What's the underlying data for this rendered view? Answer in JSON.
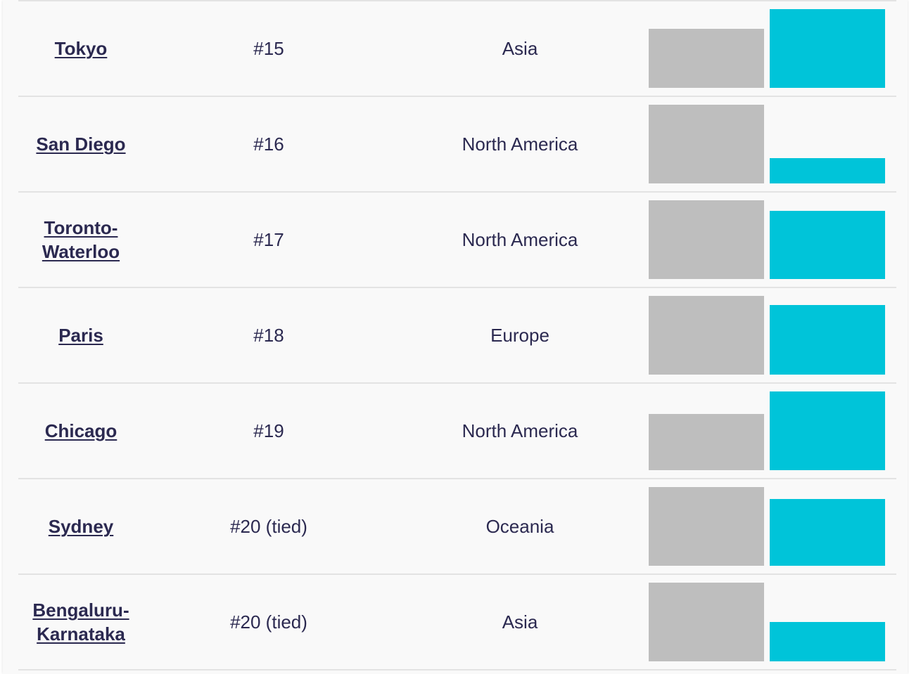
{
  "colors": {
    "bar_gray": "#bebebe",
    "bar_teal": "#00c4d9",
    "text": "#2b2950"
  },
  "rows": [
    {
      "city": "Tokyo",
      "rank": "#15",
      "region": "Asia",
      "bar_gray": 0.75,
      "bar_teal": 1.0
    },
    {
      "city": "San Diego",
      "rank": "#16",
      "region": "North America",
      "bar_gray": 1.0,
      "bar_teal": 0.32
    },
    {
      "city": "Toronto-\nWaterloo",
      "rank": "#17",
      "region": "North America",
      "bar_gray": 1.0,
      "bar_teal": 0.87
    },
    {
      "city": "Paris",
      "rank": "#18",
      "region": "Europe",
      "bar_gray": 1.0,
      "bar_teal": 0.88
    },
    {
      "city": "Chicago",
      "rank": "#19",
      "region": "North America",
      "bar_gray": 0.71,
      "bar_teal": 1.0
    },
    {
      "city": "Sydney",
      "rank": "#20 (tied)",
      "region": "Oceania",
      "bar_gray": 1.0,
      "bar_teal": 0.85
    },
    {
      "city": "Bengaluru-\nKarnataka",
      "rank": "#20 (tied)",
      "region": "Asia",
      "bar_gray": 1.0,
      "bar_teal": 0.5
    }
  ]
}
